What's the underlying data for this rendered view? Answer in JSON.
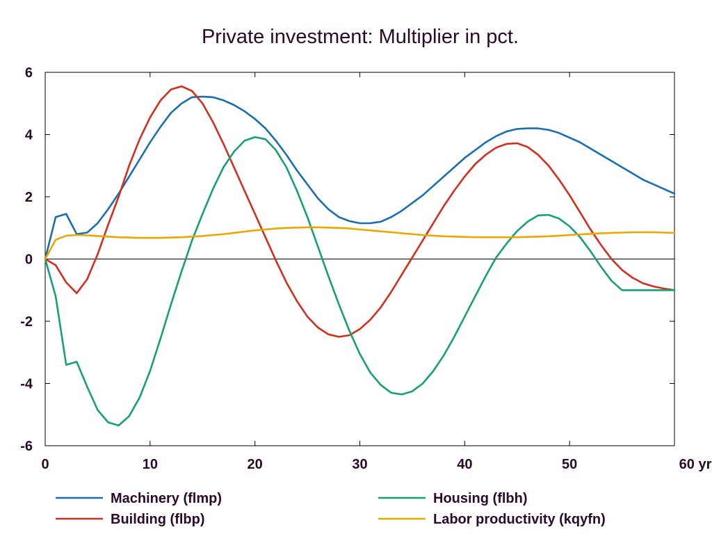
{
  "chart_data": {
    "type": "line",
    "title": "Private investment: Multiplier in pct.",
    "xlabel": "",
    "ylabel": "",
    "x_unit_label": "yr",
    "xlim": [
      0,
      60
    ],
    "ylim": [
      -6,
      6
    ],
    "x_ticks": [
      0,
      10,
      20,
      30,
      40,
      50,
      60
    ],
    "x_tick_labels": [
      "0",
      "10",
      "20",
      "30",
      "40",
      "50",
      "60 yr"
    ],
    "y_ticks": [
      -6,
      -4,
      -2,
      0,
      2,
      4,
      6
    ],
    "y_tick_labels": [
      "-6",
      "-4",
      "-2",
      "0",
      "2",
      "4",
      "6"
    ],
    "grid": false,
    "zero_line": true,
    "legend_position": "bottom",
    "x": [
      0,
      1,
      2,
      3,
      4,
      5,
      6,
      7,
      8,
      9,
      10,
      11,
      12,
      13,
      14,
      15,
      16,
      17,
      18,
      19,
      20,
      21,
      22,
      23,
      24,
      25,
      26,
      27,
      28,
      29,
      30,
      31,
      32,
      33,
      34,
      35,
      36,
      37,
      38,
      39,
      40,
      41,
      42,
      43,
      44,
      45,
      46,
      47,
      48,
      49,
      50,
      51,
      52,
      53,
      54,
      55,
      56,
      57,
      58,
      59,
      60
    ],
    "series": [
      {
        "name": "Machinery (flmp)",
        "color": "#1a6eb0",
        "values": [
          0,
          1.35,
          1.45,
          0.8,
          0.85,
          1.15,
          1.6,
          2.1,
          2.65,
          3.2,
          3.75,
          4.25,
          4.7,
          5.0,
          5.2,
          5.22,
          5.2,
          5.1,
          4.95,
          4.75,
          4.5,
          4.2,
          3.8,
          3.35,
          2.85,
          2.4,
          1.95,
          1.6,
          1.35,
          1.22,
          1.15,
          1.15,
          1.2,
          1.35,
          1.55,
          1.8,
          2.05,
          2.35,
          2.65,
          2.95,
          3.25,
          3.5,
          3.75,
          3.95,
          4.1,
          4.18,
          4.2,
          4.2,
          4.15,
          4.05,
          3.9,
          3.75,
          3.55,
          3.35,
          3.15,
          2.95,
          2.75,
          2.55,
          2.4,
          2.25,
          2.1
        ]
      },
      {
        "name": "Building (flbp)",
        "color": "#d42d1e",
        "values": [
          0,
          -0.2,
          -0.75,
          -1.1,
          -0.65,
          0.15,
          1.1,
          2.0,
          3.0,
          3.85,
          4.55,
          5.1,
          5.45,
          5.55,
          5.4,
          5.0,
          4.4,
          3.7,
          2.95,
          2.2,
          1.45,
          0.7,
          -0.05,
          -0.75,
          -1.35,
          -1.85,
          -2.2,
          -2.42,
          -2.5,
          -2.45,
          -2.25,
          -1.95,
          -1.55,
          -1.05,
          -0.5,
          0.05,
          0.6,
          1.15,
          1.7,
          2.2,
          2.65,
          3.05,
          3.35,
          3.58,
          3.7,
          3.72,
          3.6,
          3.35,
          3.0,
          2.55,
          2.05,
          1.5,
          0.95,
          0.45,
          0.0,
          -0.35,
          -0.6,
          -0.78,
          -0.88,
          -0.95,
          -1.0
        ]
      },
      {
        "name": "Housing (flbh)",
        "color": "#14a074",
        "values": [
          0,
          -1.2,
          -3.4,
          -3.3,
          -4.1,
          -4.85,
          -5.25,
          -5.35,
          -5.05,
          -4.45,
          -3.6,
          -2.55,
          -1.45,
          -0.4,
          0.6,
          1.45,
          2.25,
          2.95,
          3.45,
          3.8,
          3.92,
          3.85,
          3.5,
          2.95,
          2.2,
          1.35,
          0.4,
          -0.55,
          -1.45,
          -2.3,
          -3.05,
          -3.65,
          -4.05,
          -4.3,
          -4.35,
          -4.25,
          -4.0,
          -3.6,
          -3.1,
          -2.5,
          -1.85,
          -1.2,
          -0.55,
          0.05,
          0.5,
          0.9,
          1.2,
          1.4,
          1.42,
          1.3,
          1.05,
          0.7,
          0.25,
          -0.25,
          -0.7,
          -1.0,
          -1.0,
          -1.0,
          -1.0,
          -1.0,
          -1.0
        ]
      },
      {
        "name": "Labor productivity (kqyfn)",
        "color": "#e8a800",
        "values": [
          0,
          0.62,
          0.75,
          0.77,
          0.76,
          0.74,
          0.72,
          0.7,
          0.69,
          0.68,
          0.68,
          0.68,
          0.69,
          0.7,
          0.72,
          0.74,
          0.77,
          0.8,
          0.84,
          0.88,
          0.92,
          0.95,
          0.98,
          1.0,
          1.01,
          1.02,
          1.02,
          1.01,
          1.0,
          0.98,
          0.95,
          0.92,
          0.89,
          0.86,
          0.83,
          0.8,
          0.77,
          0.75,
          0.73,
          0.72,
          0.71,
          0.7,
          0.7,
          0.7,
          0.7,
          0.7,
          0.71,
          0.72,
          0.73,
          0.75,
          0.77,
          0.79,
          0.81,
          0.83,
          0.84,
          0.85,
          0.86,
          0.86,
          0.86,
          0.85,
          0.84
        ]
      }
    ]
  }
}
